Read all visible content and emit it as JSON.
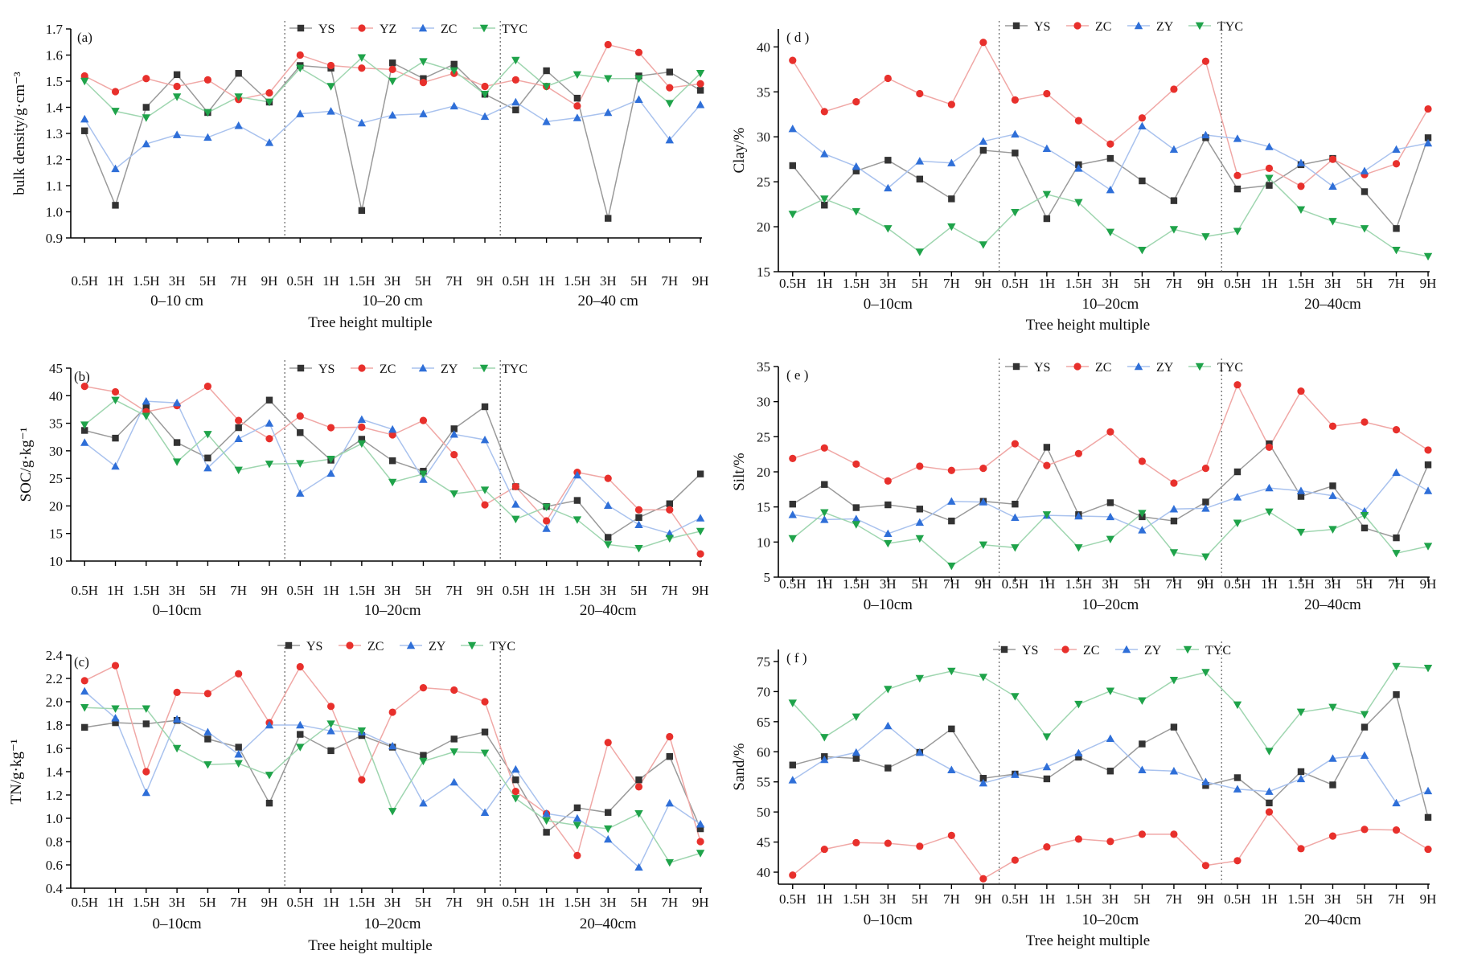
{
  "figure": {
    "x_categories": [
      "0.5H",
      "1H",
      "1.5H",
      "3H",
      "5H",
      "7H",
      "9H"
    ],
    "colors": {
      "black": "#333333",
      "red": "#e8302c",
      "blue": "#2f6fd8",
      "green": "#1fa34a"
    }
  },
  "chart_data": [
    {
      "type": "line",
      "panel_label": "(a)",
      "ylabel": "bulk density/g·cm⁻³",
      "xlabel": "Tree height multiple",
      "ylim": [
        0.9,
        1.7
      ],
      "yticks": [
        "0.9",
        "1.0",
        "1.1",
        "1.2",
        "1.3",
        "1.4",
        "1.5",
        "1.6",
        "1.7"
      ],
      "depth_groups": [
        "0–10 cm",
        "10–20 cm",
        "20–40 cm"
      ],
      "series": [
        {
          "name": "YS",
          "color": "black",
          "values": [
            1.31,
            1.025,
            1.4,
            1.525,
            1.38,
            1.53,
            1.42,
            1.56,
            1.55,
            1.005,
            1.57,
            1.51,
            1.565,
            1.45,
            1.39,
            1.54,
            1.435,
            0.975,
            1.52,
            1.535,
            1.465
          ]
        },
        {
          "name": "YZ",
          "color": "red",
          "values": [
            1.52,
            1.46,
            1.51,
            1.48,
            1.505,
            1.43,
            1.455,
            1.6,
            1.56,
            1.55,
            1.545,
            1.495,
            1.53,
            1.48,
            1.505,
            1.48,
            1.405,
            1.64,
            1.61,
            1.475,
            1.49
          ]
        },
        {
          "name": "ZC",
          "color": "blue",
          "values": [
            1.355,
            1.165,
            1.26,
            1.295,
            1.285,
            1.33,
            1.265,
            1.375,
            1.385,
            1.34,
            1.37,
            1.375,
            1.405,
            1.365,
            1.42,
            1.345,
            1.36,
            1.38,
            1.43,
            1.275,
            1.41
          ]
        },
        {
          "name": "TYC",
          "color": "green",
          "values": [
            1.5,
            1.385,
            1.36,
            1.44,
            1.38,
            1.44,
            1.42,
            1.55,
            1.48,
            1.59,
            1.5,
            1.575,
            1.54,
            1.45,
            1.58,
            1.48,
            1.525,
            1.51,
            1.51,
            1.415,
            1.53
          ]
        }
      ]
    },
    {
      "type": "line",
      "panel_label": "(b)",
      "ylabel": "SOC/g·kg⁻¹",
      "xlabel": "",
      "ylim": [
        10,
        45
      ],
      "yticks": [
        "10",
        "15",
        "20",
        "25",
        "30",
        "35",
        "40",
        "45"
      ],
      "depth_groups": [
        "0–10cm",
        "10–20cm",
        "20–40cm"
      ],
      "series": [
        {
          "name": "YS",
          "color": "black",
          "values": [
            33.7,
            32.3,
            38.0,
            31.5,
            28.7,
            34.2,
            39.2,
            33.3,
            28.3,
            32.1,
            28.2,
            26.3,
            34.0,
            38.0,
            23.5,
            19.9,
            21.0,
            14.3,
            17.9,
            20.4,
            25.8
          ]
        },
        {
          "name": "ZC",
          "color": "red",
          "values": [
            41.7,
            40.7,
            37.1,
            38.2,
            41.7,
            35.5,
            32.2,
            36.3,
            34.2,
            34.3,
            32.9,
            35.5,
            29.3,
            20.2,
            23.5,
            17.3,
            26.1,
            25.0,
            19.3,
            19.3,
            11.3
          ]
        },
        {
          "name": "ZY",
          "color": "blue",
          "values": [
            31.5,
            27.2,
            39.0,
            38.7,
            26.9,
            32.2,
            35.0,
            22.3,
            25.9,
            35.7,
            33.9,
            24.8,
            33.0,
            32.0,
            20.3,
            15.9,
            25.6,
            20.1,
            16.6,
            15.0,
            17.8
          ]
        },
        {
          "name": "TYC",
          "color": "green",
          "values": [
            34.7,
            39.2,
            36.3,
            28.0,
            33.0,
            26.5,
            27.6,
            27.7,
            28.5,
            31.3,
            24.3,
            25.8,
            22.2,
            22.9,
            17.6,
            19.8,
            17.5,
            13.0,
            12.3,
            14.1,
            15.4
          ]
        }
      ]
    },
    {
      "type": "line",
      "panel_label": "(c)",
      "ylabel": "TN/g·kg⁻¹",
      "xlabel": "Tree height multiple",
      "ylim": [
        0.4,
        2.4
      ],
      "yticks": [
        "0.4",
        "0.6",
        "0.8",
        "1.0",
        "1.2",
        "1.4",
        "1.6",
        "1.8",
        "2.0",
        "2.2",
        "2.4"
      ],
      "depth_groups": [
        "0–10cm",
        "10–20cm",
        "20–40cm"
      ],
      "series": [
        {
          "name": "YS",
          "color": "black",
          "values": [
            1.78,
            1.82,
            1.81,
            1.84,
            1.68,
            1.61,
            1.13,
            1.72,
            1.58,
            1.71,
            1.61,
            1.54,
            1.68,
            1.74,
            1.33,
            0.88,
            1.09,
            1.05,
            1.33,
            1.53,
            0.91
          ]
        },
        {
          "name": "ZC",
          "color": "red",
          "values": [
            2.18,
            2.31,
            1.4,
            2.08,
            2.07,
            2.24,
            1.82,
            2.3,
            1.96,
            1.33,
            1.91,
            2.12,
            2.1,
            2.0,
            1.23,
            1.04,
            0.68,
            1.65,
            1.27,
            1.7,
            0.8
          ]
        },
        {
          "name": "ZY",
          "color": "blue",
          "values": [
            2.09,
            1.86,
            1.22,
            1.85,
            1.74,
            1.55,
            1.8,
            1.8,
            1.75,
            1.74,
            1.62,
            1.13,
            1.31,
            1.05,
            1.42,
            1.04,
            1.0,
            0.82,
            0.58,
            1.13,
            0.95
          ]
        },
        {
          "name": "TYC",
          "color": "green",
          "values": [
            1.95,
            1.94,
            1.94,
            1.6,
            1.46,
            1.47,
            1.37,
            1.61,
            1.81,
            1.75,
            1.06,
            1.49,
            1.57,
            1.56,
            1.17,
            0.98,
            0.94,
            0.91,
            1.04,
            0.62,
            0.7
          ]
        }
      ]
    },
    {
      "type": "line",
      "panel_label": "( d )",
      "ylabel": "Clay/%",
      "xlabel": "Tree height multiple",
      "ylim": [
        15,
        42
      ],
      "yticks": [
        "15",
        "20",
        "25",
        "30",
        "35",
        "40"
      ],
      "depth_groups": [
        "0–10cm",
        "10–20cm",
        "20–40cm"
      ],
      "series": [
        {
          "name": "YS",
          "color": "black",
          "values": [
            26.8,
            22.4,
            26.2,
            27.4,
            25.3,
            23.1,
            28.5,
            28.2,
            20.9,
            26.9,
            27.6,
            25.1,
            22.9,
            29.9,
            24.2,
            24.6,
            26.9,
            27.6,
            23.9,
            19.8,
            29.9
          ]
        },
        {
          "name": "ZC",
          "color": "red",
          "values": [
            38.5,
            32.8,
            33.9,
            36.5,
            34.8,
            33.6,
            40.5,
            34.1,
            34.8,
            31.8,
            29.2,
            32.1,
            35.3,
            38.4,
            25.7,
            26.5,
            24.5,
            27.5,
            25.8,
            27.0,
            33.1
          ]
        },
        {
          "name": "ZY",
          "color": "blue",
          "values": [
            30.9,
            28.1,
            26.7,
            24.3,
            27.3,
            27.1,
            29.5,
            30.3,
            28.7,
            26.5,
            24.1,
            31.2,
            28.6,
            30.2,
            29.8,
            28.9,
            27.1,
            24.5,
            26.2,
            28.6,
            29.3
          ]
        },
        {
          "name": "TYC",
          "color": "green",
          "values": [
            21.4,
            23.1,
            21.7,
            19.8,
            17.2,
            20.0,
            18.0,
            21.6,
            23.6,
            22.7,
            19.4,
            17.4,
            19.7,
            18.9,
            19.5,
            25.4,
            21.9,
            20.6,
            19.8,
            17.4,
            16.7
          ]
        }
      ]
    },
    {
      "type": "line",
      "panel_label": "( e )",
      "ylabel": "Silt/%",
      "xlabel": "",
      "ylim": [
        5,
        35
      ],
      "yticks": [
        "5",
        "10",
        "15",
        "20",
        "25",
        "30",
        "35"
      ],
      "depth_groups": [
        "0–10cm",
        "10–20cm",
        "20–40cm"
      ],
      "series": [
        {
          "name": "YS",
          "color": "black",
          "values": [
            15.4,
            18.2,
            14.9,
            15.3,
            14.7,
            13.0,
            15.8,
            15.4,
            23.5,
            13.9,
            15.6,
            13.6,
            13.0,
            15.7,
            20.0,
            24.0,
            16.5,
            18.0,
            12.0,
            10.6,
            21.0
          ]
        },
        {
          "name": "ZC",
          "color": "red",
          "values": [
            21.9,
            23.4,
            21.1,
            18.7,
            20.8,
            20.2,
            20.5,
            24.0,
            20.9,
            22.6,
            25.7,
            21.5,
            18.4,
            20.5,
            32.4,
            23.5,
            31.5,
            26.5,
            27.1,
            26.0,
            23.1
          ]
        },
        {
          "name": "ZY",
          "color": "blue",
          "values": [
            13.9,
            13.2,
            13.3,
            11.2,
            12.8,
            15.8,
            15.7,
            13.5,
            13.8,
            13.7,
            13.6,
            11.7,
            14.7,
            14.8,
            16.4,
            17.7,
            17.3,
            16.6,
            14.4,
            19.9,
            17.3
          ]
        },
        {
          "name": "TYC",
          "color": "green",
          "values": [
            10.5,
            14.2,
            12.5,
            9.8,
            10.5,
            6.6,
            9.6,
            9.2,
            13.9,
            9.2,
            10.4,
            14.1,
            8.5,
            7.9,
            12.7,
            14.3,
            11.4,
            11.8,
            13.8,
            8.4,
            9.4
          ]
        }
      ]
    },
    {
      "type": "line",
      "panel_label": "( f )",
      "ylabel": "Sand/%",
      "xlabel": "Tree height multiple",
      "ylim": [
        38,
        77
      ],
      "yticks": [
        "40",
        "45",
        "50",
        "55",
        "60",
        "65",
        "70",
        "75"
      ],
      "depth_groups": [
        "0–10cm",
        "10–20cm",
        "20–40cm"
      ],
      "series": [
        {
          "name": "YS",
          "color": "black",
          "values": [
            57.8,
            59.2,
            58.9,
            57.3,
            59.9,
            63.8,
            55.6,
            56.3,
            55.5,
            59.1,
            56.8,
            61.3,
            64.1,
            54.4,
            55.7,
            51.5,
            56.7,
            54.5,
            64.1,
            69.5,
            49.1
          ]
        },
        {
          "name": "ZC",
          "color": "red",
          "values": [
            39.5,
            43.8,
            44.9,
            44.8,
            44.3,
            46.1,
            38.9,
            42.0,
            44.2,
            45.5,
            45.1,
            46.3,
            46.3,
            41.1,
            41.9,
            50.0,
            43.9,
            46.0,
            47.1,
            47.0,
            43.8
          ]
        },
        {
          "name": "ZY",
          "color": "blue",
          "values": [
            55.3,
            58.7,
            59.9,
            64.3,
            59.9,
            57.0,
            54.8,
            56.2,
            57.5,
            59.8,
            62.2,
            57.0,
            56.8,
            55.0,
            53.8,
            53.4,
            55.5,
            58.9,
            59.4,
            51.5,
            53.5
          ]
        },
        {
          "name": "TYC",
          "color": "green",
          "values": [
            68.1,
            62.4,
            65.8,
            70.4,
            72.2,
            73.4,
            72.4,
            69.2,
            62.5,
            67.9,
            70.1,
            68.5,
            71.9,
            73.2,
            67.8,
            60.1,
            66.6,
            67.4,
            66.2,
            74.2,
            73.9
          ]
        }
      ]
    }
  ]
}
